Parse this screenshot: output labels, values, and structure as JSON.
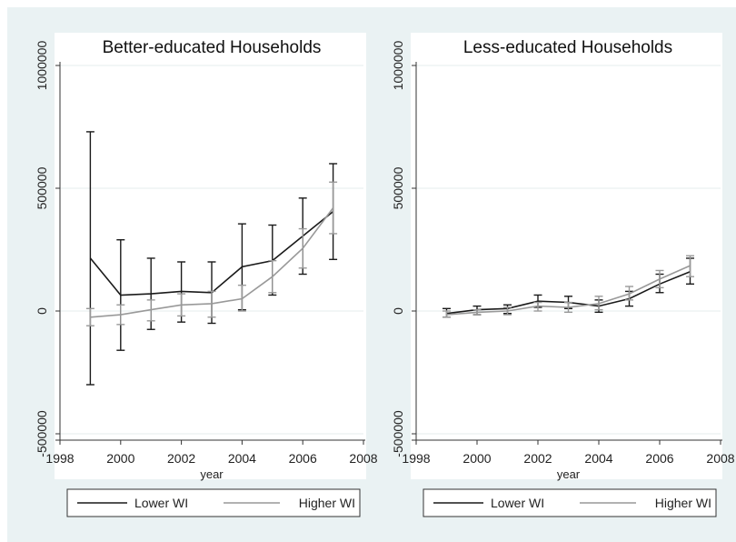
{
  "chart_data": [
    {
      "type": "line",
      "title": "Better-educated Households",
      "xlabel": "year",
      "ylabel": "",
      "xlim": [
        1998,
        2008
      ],
      "ylim": [
        -500000,
        1000000
      ],
      "xticks": [
        1998,
        2000,
        2002,
        2004,
        2006,
        2008
      ],
      "xtick_labels": [
        "1998",
        "2000",
        "2002",
        "2004",
        "2006",
        "2008"
      ],
      "yticks": [
        -500000,
        0,
        500000,
        1000000
      ],
      "ytick_labels": [
        "-500000",
        "0",
        "500000",
        "1000000"
      ],
      "grid": true,
      "legend_position": "bottom",
      "x": [
        1999,
        2000,
        2001,
        2002,
        2003,
        2004,
        2005,
        2006,
        2007
      ],
      "series": [
        {
          "name": "Lower WI",
          "color": "#1a1a1a",
          "values": [
            215000,
            65000,
            70000,
            80000,
            75000,
            180000,
            205000,
            305000,
            405000
          ],
          "ci_low": [
            -300000,
            -160000,
            -75000,
            -45000,
            -50000,
            5000,
            65000,
            150000,
            210000
          ],
          "ci_high": [
            730000,
            290000,
            215000,
            200000,
            200000,
            355000,
            350000,
            460000,
            600000
          ]
        },
        {
          "name": "Higher WI",
          "color": "#999999",
          "values": [
            -25000,
            -15000,
            5000,
            25000,
            30000,
            50000,
            140000,
            255000,
            420000
          ],
          "ci_low": [
            -60000,
            -55000,
            -40000,
            -20000,
            -25000,
            0,
            75000,
            175000,
            315000
          ],
          "ci_high": [
            10000,
            25000,
            45000,
            70000,
            80000,
            105000,
            205000,
            335000,
            525000
          ]
        }
      ]
    },
    {
      "type": "line",
      "title": "Less-educated Households",
      "xlabel": "year",
      "ylabel": "",
      "xlim": [
        1998,
        2008
      ],
      "ylim": [
        -500000,
        1000000
      ],
      "xticks": [
        1998,
        2000,
        2002,
        2004,
        2006,
        2008
      ],
      "xtick_labels": [
        "1998",
        "2000",
        "2002",
        "2004",
        "2006",
        "2008"
      ],
      "yticks": [
        -500000,
        0,
        500000,
        1000000
      ],
      "ytick_labels": [
        "-500000",
        "0",
        "500000",
        "1000000"
      ],
      "grid": true,
      "legend_position": "bottom",
      "x": [
        1999,
        2000,
        2001,
        2002,
        2003,
        2004,
        2005,
        2006,
        2007
      ],
      "series": [
        {
          "name": "Lower WI",
          "color": "#1a1a1a",
          "values": [
            -10000,
            5000,
            10000,
            40000,
            35000,
            20000,
            50000,
            110000,
            160000
          ],
          "ci_low": [
            -25000,
            -15000,
            -10000,
            15000,
            10000,
            -5000,
            20000,
            75000,
            110000
          ],
          "ci_high": [
            10000,
            20000,
            25000,
            65000,
            60000,
            45000,
            80000,
            150000,
            215000
          ]
        },
        {
          "name": "Higher WI",
          "color": "#999999",
          "values": [
            -15000,
            -5000,
            0,
            20000,
            15000,
            30000,
            70000,
            130000,
            185000
          ],
          "ci_low": [
            -25000,
            -15000,
            -15000,
            0,
            -5000,
            5000,
            45000,
            95000,
            140000
          ],
          "ci_high": [
            0,
            5000,
            15000,
            35000,
            35000,
            60000,
            100000,
            165000,
            225000
          ]
        }
      ]
    }
  ],
  "colors": {
    "outer_background": "#eaf2f3",
    "plot_background": "#ffffff",
    "grid": "#e6ecee",
    "axis": "#333333"
  }
}
